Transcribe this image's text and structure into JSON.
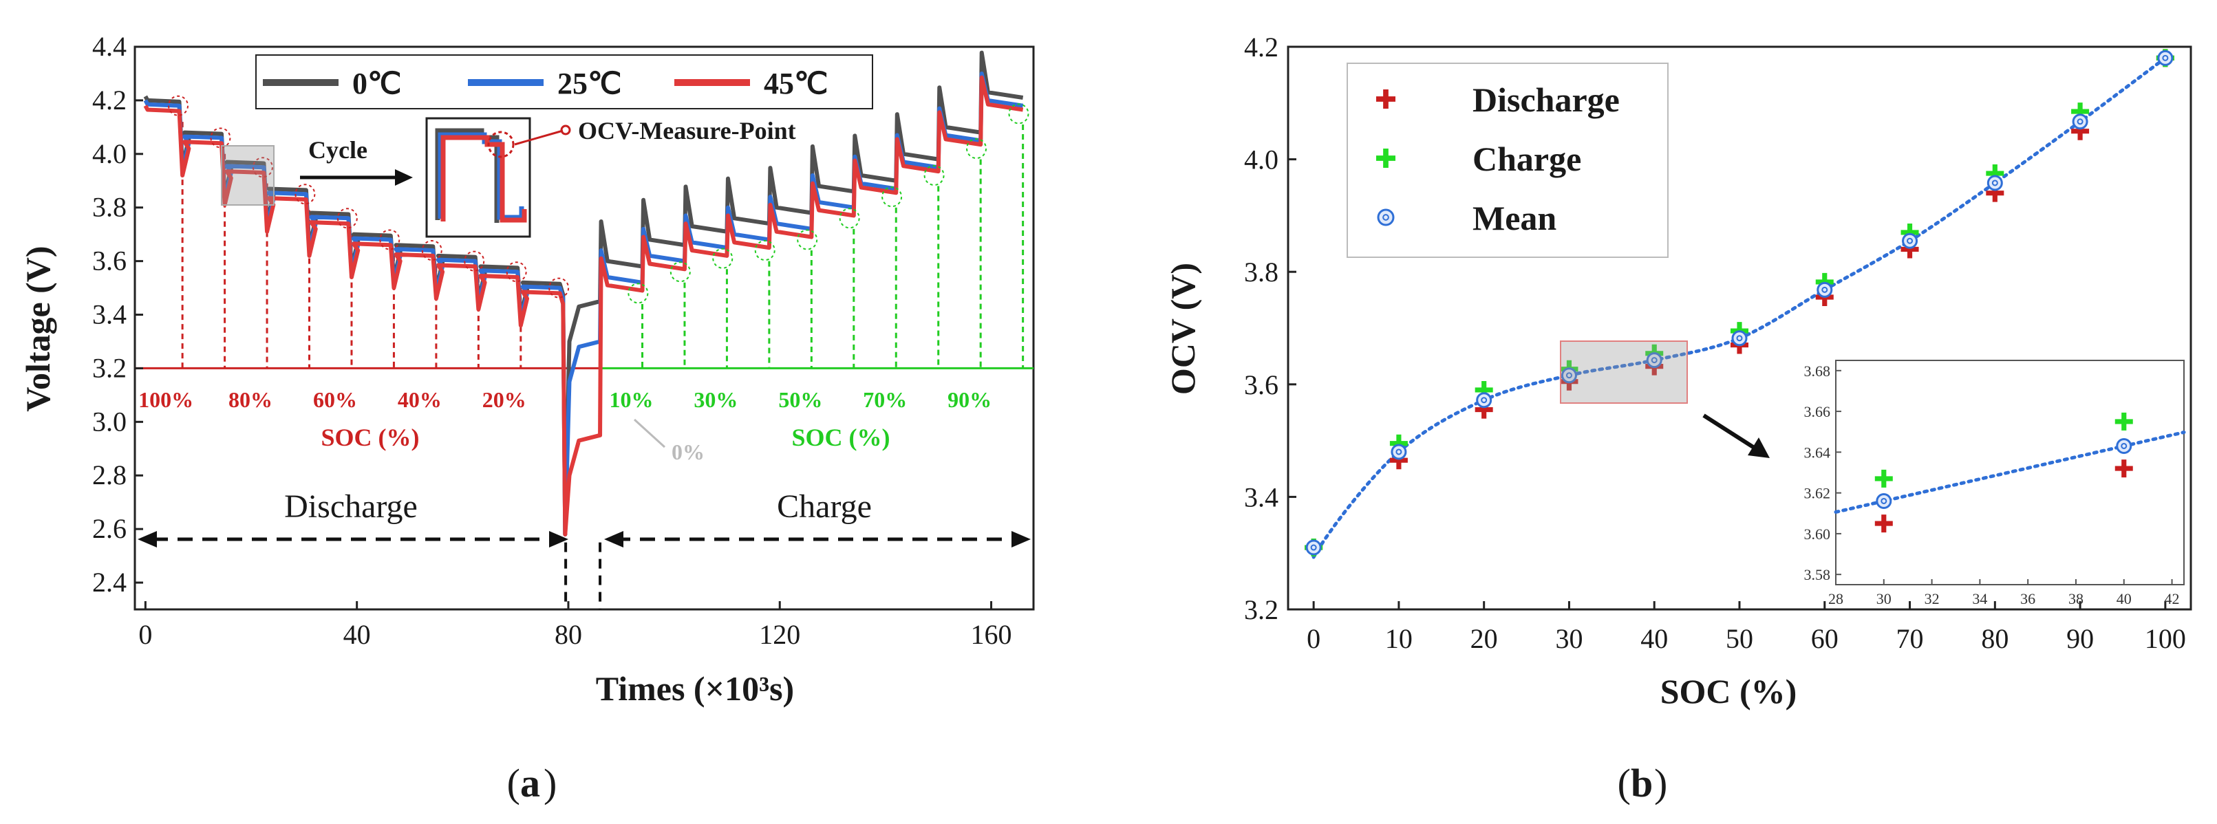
{
  "colors": {
    "t0": "#505050",
    "t25": "#2f6fd6",
    "t45": "#e03a3a",
    "discharge": "#c81e1e",
    "charge": "#22dd22",
    "soc_dis": "#cc2222",
    "soc_chg": "#22cc22",
    "mean": "#2f6fd6",
    "gray": "#bbbbbb"
  },
  "panel_a": {
    "label_prefix": "(",
    "label_letter": "a",
    "label_suffix": ")",
    "chart_data": {
      "type": "line",
      "xlabel": "Times (×10³s)",
      "ylabel": "Voltage (V)",
      "xlim": [
        -2,
        168
      ],
      "ylim": [
        2.3,
        4.4
      ],
      "xticks": [
        "0",
        "40",
        "80",
        "120",
        "160"
      ],
      "yticks": [
        "2.4",
        "2.6",
        "2.8",
        "3.0",
        "3.2",
        "3.4",
        "3.6",
        "3.8",
        "4.0",
        "4.2",
        "4.4"
      ],
      "series": [
        {
          "name": "0℃",
          "color": "#505050"
        },
        {
          "name": "25℃",
          "color": "#2f6fd6"
        },
        {
          "name": "45℃",
          "color": "#e03a3a"
        }
      ],
      "discharge_steps": [
        {
          "x_end": 7,
          "v": 4.18
        },
        {
          "x_end": 15,
          "v": 4.06
        },
        {
          "x_end": 23,
          "v": 3.95
        },
        {
          "x_end": 31,
          "v": 3.85
        },
        {
          "x_end": 39,
          "v": 3.76
        },
        {
          "x_end": 47,
          "v": 3.68
        },
        {
          "x_end": 55,
          "v": 3.64
        },
        {
          "x_end": 63,
          "v": 3.6
        },
        {
          "x_end": 71,
          "v": 3.56
        },
        {
          "x_end": 79,
          "v": 3.5
        }
      ],
      "charge_steps": [
        {
          "x_end": 94,
          "v": 3.5
        },
        {
          "x_end": 102,
          "v": 3.58
        },
        {
          "x_end": 110,
          "v": 3.63
        },
        {
          "x_end": 118,
          "v": 3.66
        },
        {
          "x_end": 126,
          "v": 3.7
        },
        {
          "x_end": 134,
          "v": 3.78
        },
        {
          "x_end": 142,
          "v": 3.86
        },
        {
          "x_end": 150,
          "v": 3.94
        },
        {
          "x_end": 158,
          "v": 4.04
        },
        {
          "x_end": 166,
          "v": 4.17
        }
      ],
      "legend": [
        "0℃",
        "25℃",
        "45℃"
      ],
      "annotations": {
        "cycle": "Cycle",
        "ocv_point": "OCV-Measure-Point",
        "discharge": "Discharge",
        "charge": "Charge",
        "zero": "0%",
        "soc_dis_title": "SOC (%)",
        "soc_chg_title": "SOC (%)",
        "soc_dis_labels": [
          "100%",
          "80%",
          "60%",
          "40%",
          "20%"
        ],
        "soc_chg_labels": [
          "10%",
          "30%",
          "50%",
          "70%",
          "90%"
        ]
      }
    }
  },
  "panel_b": {
    "label_prefix": "(",
    "label_letter": "b",
    "label_suffix": ")",
    "chart_data": {
      "type": "scatter",
      "xlabel": "SOC (%)",
      "ylabel": "OCV (V)",
      "xlim": [
        -3,
        103
      ],
      "ylim": [
        3.2,
        4.2
      ],
      "xticks": [
        "0",
        "10",
        "20",
        "30",
        "40",
        "50",
        "60",
        "70",
        "80",
        "90",
        "100"
      ],
      "yticks": [
        "3.2",
        "3.4",
        "3.6",
        "3.8",
        "4.0",
        "4.2"
      ],
      "x": [
        0,
        10,
        20,
        30,
        40,
        50,
        60,
        70,
        80,
        90,
        100
      ],
      "series": [
        {
          "name": "Discharge",
          "values": [
            3.31,
            3.465,
            3.555,
            3.605,
            3.632,
            3.67,
            3.755,
            3.84,
            3.94,
            4.05,
            4.18
          ]
        },
        {
          "name": "Charge",
          "values": [
            3.31,
            3.495,
            3.59,
            3.627,
            3.655,
            3.695,
            3.782,
            3.87,
            3.975,
            4.085,
            4.18
          ]
        },
        {
          "name": "Mean",
          "values": [
            3.31,
            3.48,
            3.572,
            3.616,
            3.643,
            3.682,
            3.768,
            3.855,
            3.958,
            4.067,
            4.18
          ]
        }
      ],
      "legend": [
        "Discharge",
        "Charge",
        "Mean"
      ],
      "inset": {
        "xlim": [
          28,
          42.5
        ],
        "ylim": [
          3.575,
          3.685
        ],
        "xticks": [
          "28",
          "30",
          "32",
          "34",
          "36",
          "38",
          "40",
          "42"
        ],
        "yticks": [
          "3.58",
          "3.60",
          "3.62",
          "3.64",
          "3.66",
          "3.68"
        ]
      }
    }
  }
}
